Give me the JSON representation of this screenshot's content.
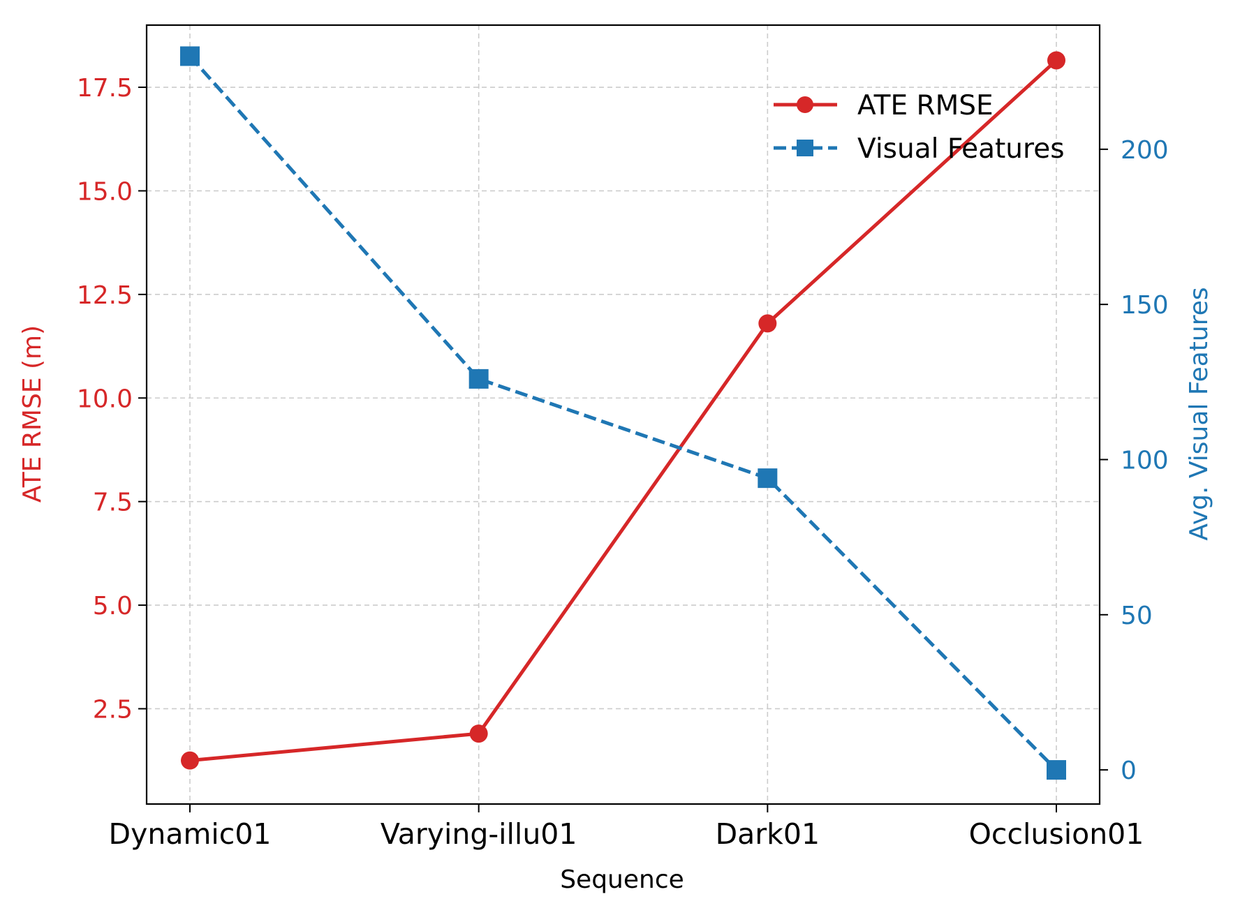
{
  "colors": {
    "left_axis": "#d62728",
    "right_axis": "#1f77b4",
    "grid": "#cccccc",
    "frame": "#000000"
  },
  "chart_data": {
    "type": "line",
    "categories": [
      "Dynamic01",
      "Varying-illu01",
      "Dark01",
      "Occlusion01"
    ],
    "xlabel": "Sequence",
    "ylabel_left": "ATE RMSE (m)",
    "ylabel_right": "Avg. Visual Features",
    "ylim_left": [
      0.2,
      19.0
    ],
    "ylim_right": [
      -11,
      240
    ],
    "yticks_left": [
      "2.5",
      "5.0",
      "7.5",
      "10.0",
      "12.5",
      "15.0",
      "17.5"
    ],
    "yticks_right": [
      "0",
      "50",
      "100",
      "150",
      "200"
    ],
    "grid": true,
    "legend_position": "upper right",
    "series": [
      {
        "name": "ATE RMSE",
        "axis": "left",
        "marker": "circle",
        "line_style": "solid",
        "color": "#d62728",
        "values": [
          1.25,
          1.9,
          11.8,
          18.15
        ]
      },
      {
        "name": "Visual Features",
        "axis": "right",
        "marker": "square",
        "line_style": "dashed",
        "color": "#1f77b4",
        "values": [
          230,
          126,
          94,
          0
        ]
      }
    ]
  }
}
